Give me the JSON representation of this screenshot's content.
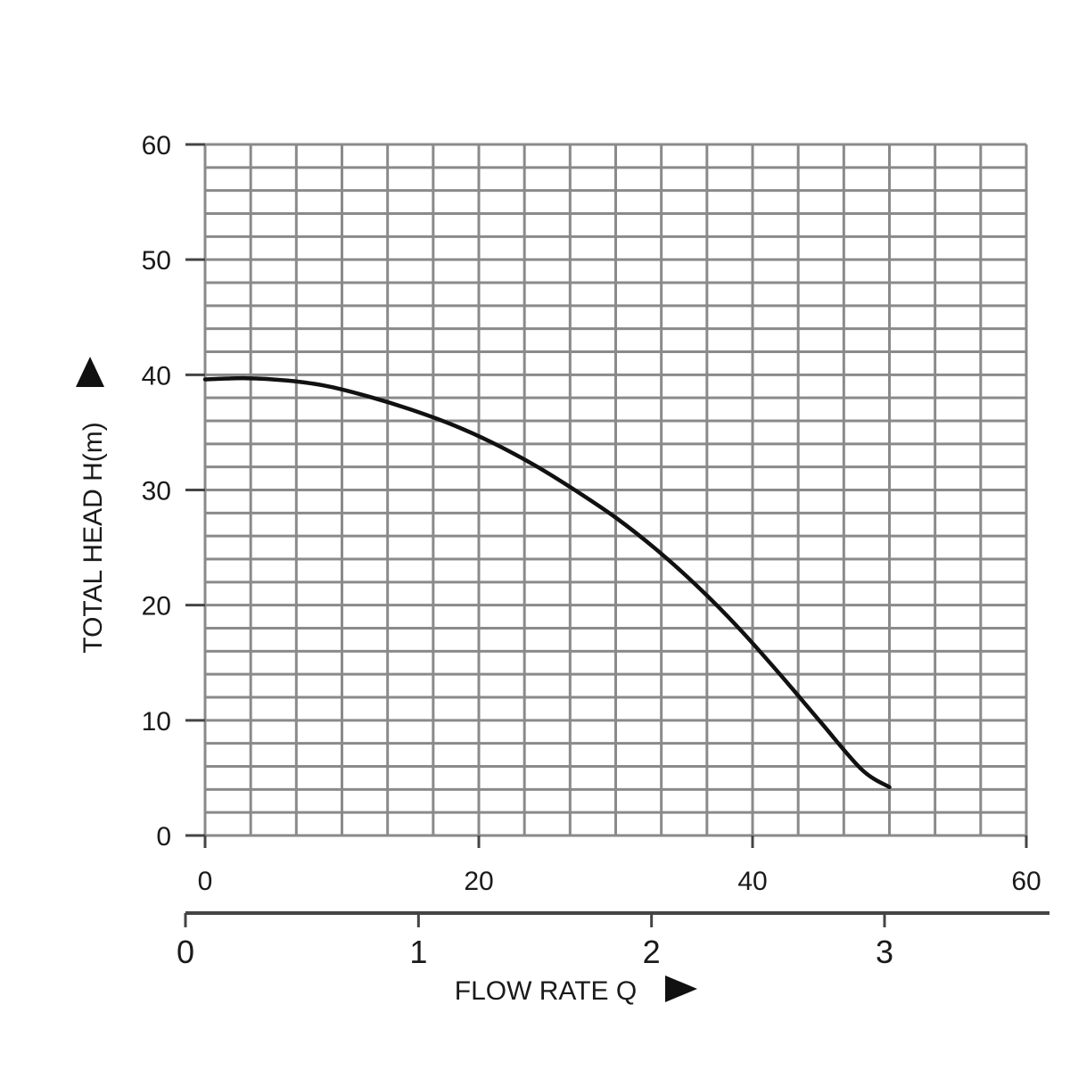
{
  "chart_data": {
    "type": "line",
    "title": "",
    "xlabel": "FLOW RATE Q",
    "ylabel": "TOTAL HEAD H(m)",
    "xlim": [
      0,
      60
    ],
    "ylim": [
      0,
      60
    ],
    "x_ticks": [
      "0",
      "20",
      "40",
      "60"
    ],
    "y_ticks": [
      "0",
      "10",
      "20",
      "30",
      "40",
      "50",
      "60"
    ],
    "secondary_x_axis": {
      "xlim": [
        0,
        3.6
      ],
      "ticks": [
        "0",
        "1",
        "2",
        "3"
      ]
    },
    "grid": true,
    "legend": "none",
    "series": [
      {
        "color": "#111111",
        "x": [
          0,
          3,
          6,
          9,
          12,
          15,
          18,
          21,
          24,
          27,
          30,
          33,
          36,
          39,
          42,
          45,
          48,
          50
        ],
        "y": [
          39.6,
          39.7,
          39.5,
          39.0,
          38.1,
          37.0,
          35.7,
          34.1,
          32.2,
          30.0,
          27.6,
          24.8,
          21.6,
          18.0,
          14.0,
          9.8,
          5.7,
          4.2
        ]
      }
    ],
    "colors": {
      "grid": "#8a8a8a",
      "axis": "#444444",
      "line": "#111111"
    },
    "axis_icons": {
      "y_arrow": "triangle-up-icon",
      "x_arrow": "triangle-right-icon"
    }
  }
}
